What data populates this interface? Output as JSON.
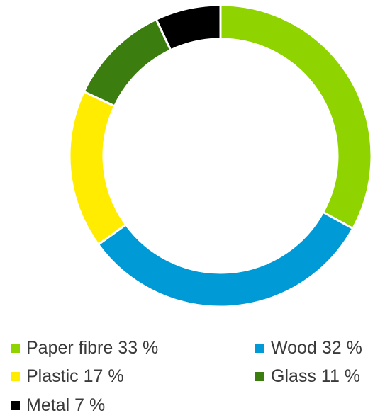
{
  "chart_data": {
    "type": "pie",
    "variant": "donut",
    "slices": [
      {
        "label": "Paper fibre",
        "value": 33,
        "value_label": "33 %",
        "color": "#8fd400"
      },
      {
        "label": "Wood",
        "value": 32,
        "value_label": "32 %",
        "color": "#009ad6"
      },
      {
        "label": "Plastic",
        "value": 17,
        "value_label": "17 %",
        "color": "#ffec00"
      },
      {
        "label": "Glass",
        "value": 11,
        "value_label": "11 %",
        "color": "#3c7d0f"
      },
      {
        "label": "Metal",
        "value": 7,
        "value_label": "7 %",
        "color": "#000000"
      }
    ],
    "legend_position": "bottom",
    "start_angle": "12 o'clock",
    "direction": "clockwise"
  }
}
